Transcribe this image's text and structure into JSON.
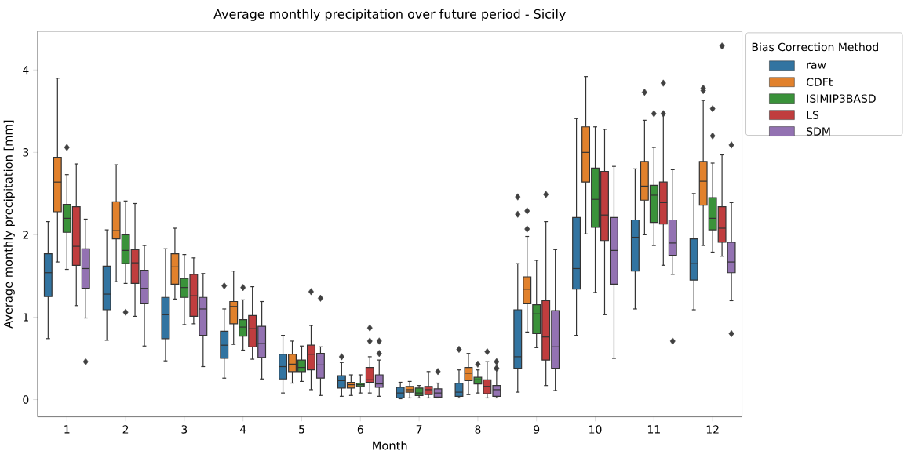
{
  "chart_data": {
    "type": "box",
    "title": "Average monthly precipitation over future period - Sicily",
    "xlabel": "Month",
    "ylabel": "Average monthly precipitation [mm]",
    "legend_title": "Bias Correction Method",
    "legend": "right",
    "marker": "diamond",
    "categories": [
      "1",
      "2",
      "3",
      "4",
      "5",
      "6",
      "7",
      "8",
      "9",
      "10",
      "11",
      "12"
    ],
    "ylim": [
      -0.21,
      4.47
    ],
    "yticks": [
      0,
      1,
      2,
      3,
      4
    ],
    "series": [
      {
        "name": "raw",
        "color": "#3274a1",
        "boxes": [
          {
            "low": 0.74,
            "q1": 1.25,
            "median": 1.54,
            "q3": 1.77,
            "high": 2.16
          },
          {
            "low": 0.72,
            "q1": 1.09,
            "median": 1.28,
            "q3": 1.62,
            "high": 2.06
          },
          {
            "low": 0.47,
            "q1": 0.74,
            "median": 1.03,
            "q3": 1.24,
            "high": 1.83
          },
          {
            "low": 0.26,
            "q1": 0.5,
            "median": 0.66,
            "q3": 0.83,
            "high": 1.1,
            "outliers": [
              1.38
            ]
          },
          {
            "low": 0.08,
            "q1": 0.25,
            "median": 0.4,
            "q3": 0.55,
            "high": 0.78
          },
          {
            "low": 0.04,
            "q1": 0.14,
            "median": 0.23,
            "q3": 0.29,
            "high": 0.45,
            "outliers": [
              0.52
            ]
          },
          {
            "low": 0.01,
            "q1": 0.02,
            "median": 0.08,
            "q3": 0.15,
            "high": 0.21
          },
          {
            "low": 0.02,
            "q1": 0.04,
            "median": 0.09,
            "q3": 0.2,
            "high": 0.36,
            "outliers": [
              0.61
            ]
          },
          {
            "low": 0.09,
            "q1": 0.38,
            "median": 0.52,
            "q3": 1.09,
            "high": 1.65,
            "outliers": [
              2.46,
              2.25
            ]
          },
          {
            "low": 0.78,
            "q1": 1.34,
            "median": 1.59,
            "q3": 2.21,
            "high": 3.41
          },
          {
            "low": 1.1,
            "q1": 1.56,
            "median": 1.97,
            "q3": 2.18,
            "high": 2.8
          },
          {
            "low": 1.09,
            "q1": 1.45,
            "median": 1.65,
            "q3": 1.95,
            "high": 2.5
          }
        ]
      },
      {
        "name": "CDFt",
        "color": "#e1812c",
        "boxes": [
          {
            "low": 1.67,
            "q1": 2.28,
            "median": 2.64,
            "q3": 2.94,
            "high": 3.9
          },
          {
            "low": 1.43,
            "q1": 1.95,
            "median": 2.05,
            "q3": 2.4,
            "high": 2.85
          },
          {
            "low": 1.22,
            "q1": 1.4,
            "median": 1.61,
            "q3": 1.77,
            "high": 2.08
          },
          {
            "low": 0.67,
            "q1": 0.92,
            "median": 1.13,
            "q3": 1.19,
            "high": 1.56
          },
          {
            "low": 0.2,
            "q1": 0.34,
            "median": 0.43,
            "q3": 0.55,
            "high": 0.71
          },
          {
            "low": 0.05,
            "q1": 0.14,
            "median": 0.18,
            "q3": 0.21,
            "high": 0.3
          },
          {
            "low": 0.02,
            "q1": 0.09,
            "median": 0.12,
            "q3": 0.16,
            "high": 0.22
          },
          {
            "low": 0.06,
            "q1": 0.23,
            "median": 0.32,
            "q3": 0.39,
            "high": 0.56
          },
          {
            "low": 0.82,
            "q1": 1.17,
            "median": 1.34,
            "q3": 1.49,
            "high": 1.98,
            "outliers": [
              2.29,
              2.07
            ]
          },
          {
            "low": 2.01,
            "q1": 2.64,
            "median": 3.0,
            "q3": 3.31,
            "high": 3.92
          },
          {
            "low": 2.0,
            "q1": 2.42,
            "median": 2.59,
            "q3": 2.89,
            "high": 3.39,
            "outliers": [
              3.73
            ]
          },
          {
            "low": 1.87,
            "q1": 2.36,
            "median": 2.65,
            "q3": 2.89,
            "high": 3.63,
            "outliers": [
              3.78,
              3.75
            ]
          }
        ]
      },
      {
        "name": "ISIMIP3BASD",
        "color": "#3a923a",
        "boxes": [
          {
            "low": 1.58,
            "q1": 2.03,
            "median": 2.2,
            "q3": 2.37,
            "high": 2.73,
            "outliers": [
              3.06
            ]
          },
          {
            "low": 1.41,
            "q1": 1.65,
            "median": 1.81,
            "q3": 2.0,
            "high": 2.41,
            "outliers": [
              1.06
            ]
          },
          {
            "low": 0.91,
            "q1": 1.24,
            "median": 1.36,
            "q3": 1.47,
            "high": 1.76
          },
          {
            "low": 0.6,
            "q1": 0.77,
            "median": 0.88,
            "q3": 0.97,
            "high": 1.21,
            "outliers": [
              1.36
            ]
          },
          {
            "low": 0.22,
            "q1": 0.34,
            "median": 0.39,
            "q3": 0.48,
            "high": 0.65
          },
          {
            "low": 0.08,
            "q1": 0.16,
            "median": 0.18,
            "q3": 0.2,
            "high": 0.3
          },
          {
            "low": 0.02,
            "q1": 0.05,
            "median": 0.08,
            "q3": 0.14,
            "high": 0.17
          },
          {
            "low": 0.08,
            "q1": 0.19,
            "median": 0.24,
            "q3": 0.27,
            "high": 0.36,
            "outliers": [
              0.43
            ]
          },
          {
            "low": 0.63,
            "q1": 0.8,
            "median": 1.04,
            "q3": 1.15,
            "high": 1.69
          },
          {
            "low": 1.3,
            "q1": 2.09,
            "median": 2.43,
            "q3": 2.81,
            "high": 3.31
          },
          {
            "low": 1.87,
            "q1": 2.15,
            "median": 2.48,
            "q3": 2.6,
            "high": 3.06,
            "outliers": [
              3.47
            ]
          },
          {
            "low": 1.79,
            "q1": 2.06,
            "median": 2.2,
            "q3": 2.45,
            "high": 2.87,
            "outliers": [
              3.53,
              3.2
            ]
          }
        ]
      },
      {
        "name": "LS",
        "color": "#c03d3e",
        "boxes": [
          {
            "low": 1.14,
            "q1": 1.63,
            "median": 1.86,
            "q3": 2.34,
            "high": 2.86
          },
          {
            "low": 1.01,
            "q1": 1.41,
            "median": 1.66,
            "q3": 1.82,
            "high": 2.38
          },
          {
            "low": 0.92,
            "q1": 1.01,
            "median": 1.26,
            "q3": 1.52,
            "high": 1.72
          },
          {
            "low": 0.49,
            "q1": 0.64,
            "median": 0.86,
            "q3": 1.02,
            "high": 1.37
          },
          {
            "low": 0.12,
            "q1": 0.36,
            "median": 0.55,
            "q3": 0.66,
            "high": 0.9,
            "outliers": [
              1.31
            ]
          },
          {
            "low": 0.08,
            "q1": 0.21,
            "median": 0.24,
            "q3": 0.39,
            "high": 0.52,
            "outliers": [
              0.87,
              0.71
            ]
          },
          {
            "low": 0.02,
            "q1": 0.06,
            "median": 0.12,
            "q3": 0.16,
            "high": 0.34
          },
          {
            "low": 0.02,
            "q1": 0.07,
            "median": 0.16,
            "q3": 0.24,
            "high": 0.46,
            "outliers": [
              0.58
            ]
          },
          {
            "low": 0.17,
            "q1": 0.48,
            "median": 0.76,
            "q3": 1.2,
            "high": 2.16,
            "outliers": [
              2.49
            ]
          },
          {
            "low": 1.03,
            "q1": 1.93,
            "median": 2.24,
            "q3": 2.77,
            "high": 3.28
          },
          {
            "low": 1.63,
            "q1": 2.13,
            "median": 2.39,
            "q3": 2.64,
            "high": 3.48,
            "outliers": [
              3.84,
              3.47
            ]
          },
          {
            "low": 1.74,
            "q1": 1.91,
            "median": 2.08,
            "q3": 2.34,
            "high": 2.97,
            "outliers": [
              4.29
            ]
          }
        ]
      },
      {
        "name": "SDM",
        "color": "#9372b2",
        "boxes": [
          {
            "low": 0.99,
            "q1": 1.35,
            "median": 1.59,
            "q3": 1.83,
            "high": 2.19,
            "outliers": [
              0.46
            ]
          },
          {
            "low": 0.65,
            "q1": 1.17,
            "median": 1.35,
            "q3": 1.57,
            "high": 1.87
          },
          {
            "low": 0.4,
            "q1": 0.78,
            "median": 1.1,
            "q3": 1.24,
            "high": 1.53
          },
          {
            "low": 0.25,
            "q1": 0.51,
            "median": 0.68,
            "q3": 0.89,
            "high": 1.19
          },
          {
            "low": 0.05,
            "q1": 0.26,
            "median": 0.42,
            "q3": 0.56,
            "high": 0.64,
            "outliers": [
              1.23
            ]
          },
          {
            "low": 0.04,
            "q1": 0.15,
            "median": 0.19,
            "q3": 0.3,
            "high": 0.48,
            "outliers": [
              0.71,
              0.56
            ]
          },
          {
            "low": 0.02,
            "q1": 0.03,
            "median": 0.08,
            "q3": 0.13,
            "high": 0.2,
            "outliers": [
              0.34
            ]
          },
          {
            "low": 0.02,
            "q1": 0.04,
            "median": 0.12,
            "q3": 0.17,
            "high": 0.36,
            "outliers": [
              0.46,
              0.38
            ]
          },
          {
            "low": 0.11,
            "q1": 0.38,
            "median": 0.64,
            "q3": 1.08,
            "high": 1.82
          },
          {
            "low": 0.5,
            "q1": 1.4,
            "median": 1.81,
            "q3": 2.21,
            "high": 2.83
          },
          {
            "low": 1.52,
            "q1": 1.75,
            "median": 1.9,
            "q3": 2.18,
            "high": 2.79,
            "outliers": [
              0.71
            ]
          },
          {
            "low": 1.2,
            "q1": 1.54,
            "median": 1.67,
            "q3": 1.91,
            "high": 2.39,
            "outliers": [
              3.09,
              0.8
            ]
          }
        ]
      }
    ]
  }
}
